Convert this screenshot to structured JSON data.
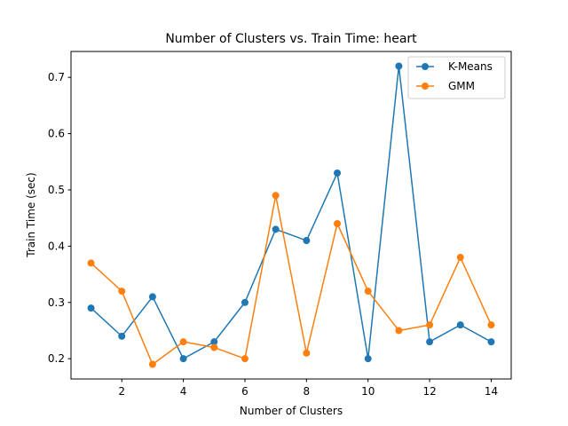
{
  "chart_data": {
    "type": "line",
    "title": "Number of Clusters vs. Train Time: heart",
    "xlabel": "Number of Clusters",
    "ylabel": "Train Time (sec)",
    "x": [
      1,
      2,
      3,
      4,
      5,
      6,
      7,
      8,
      9,
      10,
      11,
      12,
      13,
      14
    ],
    "xlim": [
      0.35,
      14.65
    ],
    "ylim": [
      0.164,
      0.746
    ],
    "xticks": [
      2,
      4,
      6,
      8,
      10,
      12,
      14
    ],
    "yticks": [
      0.2,
      0.3,
      0.4,
      0.5,
      0.6,
      0.7
    ],
    "grid": false,
    "legend_position": "top-right",
    "series": [
      {
        "name": "K-Means",
        "color": "#1f77b4",
        "marker": "circle",
        "values": [
          0.29,
          0.24,
          0.31,
          0.2,
          0.23,
          0.3,
          0.43,
          0.41,
          0.53,
          0.2,
          0.72,
          0.23,
          0.26,
          0.23
        ]
      },
      {
        "name": "GMM",
        "color": "#ff7f0e",
        "marker": "circle",
        "values": [
          0.37,
          0.32,
          0.19,
          0.23,
          0.22,
          0.2,
          0.49,
          0.21,
          0.44,
          0.32,
          0.25,
          0.26,
          0.38,
          0.26
        ]
      }
    ]
  }
}
